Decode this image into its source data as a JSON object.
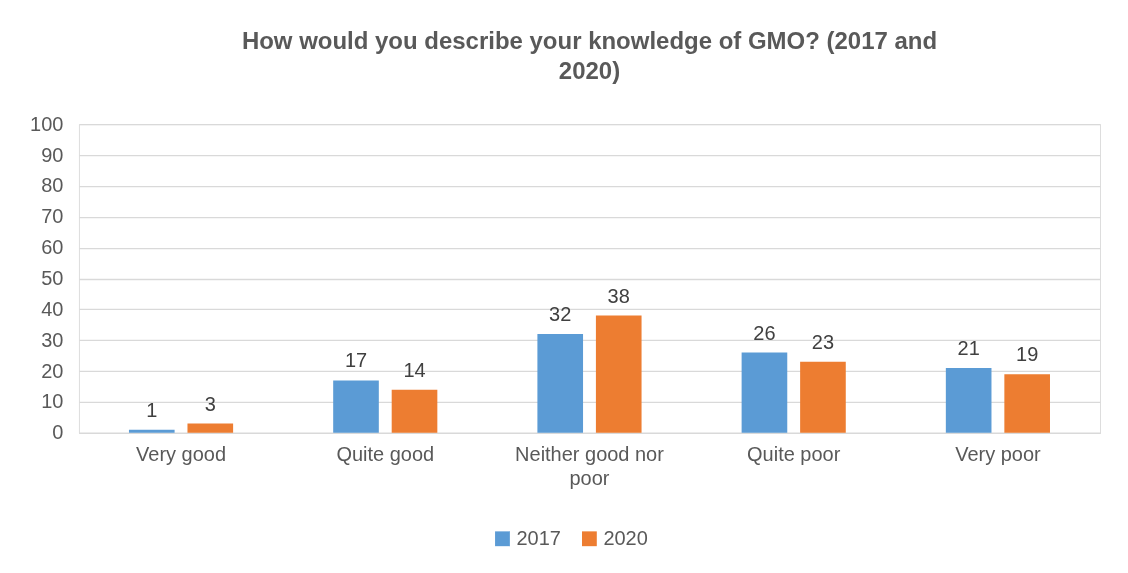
{
  "chart_data": {
    "type": "bar",
    "title": "How would you describe your knowledge of GMO? (2017 and 2020)",
    "categories": [
      "Very good",
      "Quite good",
      "Neither good nor poor",
      "Quite poor",
      "Very poor"
    ],
    "series": [
      {
        "name": "2017",
        "color": "#5b9bd5",
        "values": [
          1,
          17,
          32,
          26,
          21
        ]
      },
      {
        "name": "2020",
        "color": "#ed7d31",
        "values": [
          3,
          14,
          38,
          23,
          19
        ]
      }
    ],
    "ylim": [
      0,
      100
    ],
    "yticks": [
      0,
      10,
      20,
      30,
      40,
      50,
      60,
      70,
      80,
      90,
      100
    ],
    "grid": "y",
    "legend": "bottom",
    "data_labels": true
  }
}
